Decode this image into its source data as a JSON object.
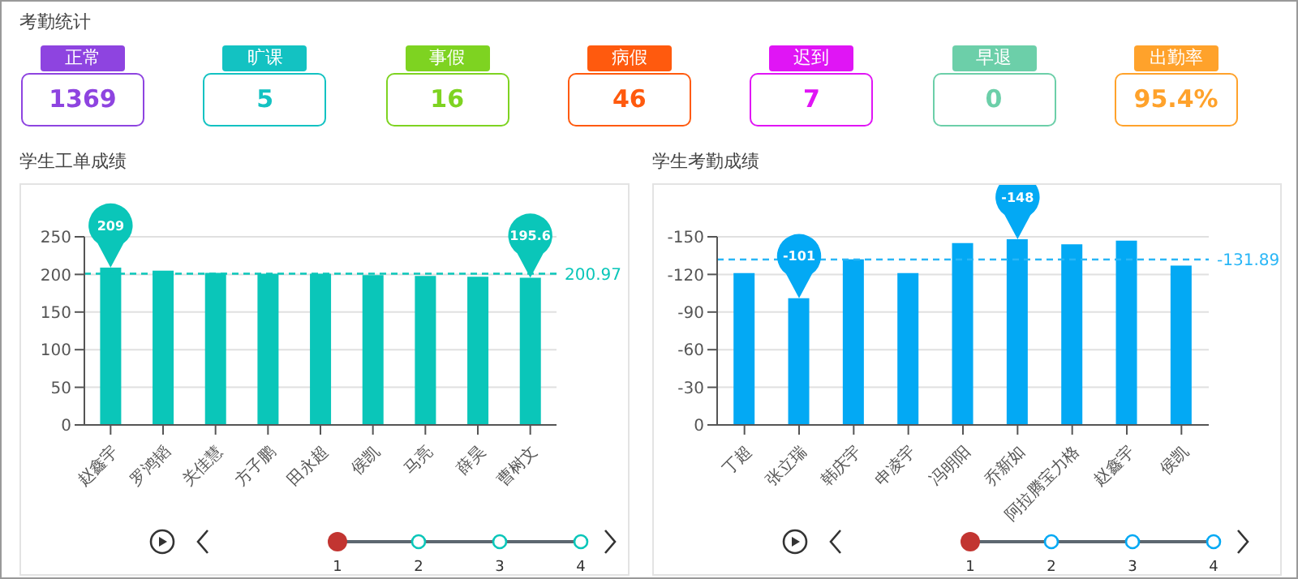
{
  "chart_data": [
    {
      "type": "other",
      "title": "考勤统计",
      "categories": [
        "正常",
        "旷课",
        "事假",
        "病假",
        "迟到",
        "早退",
        "出勤率"
      ],
      "values": [
        1369,
        5,
        16,
        46,
        7,
        0,
        95.4
      ],
      "value_labels": [
        "1369",
        "5",
        "16",
        "46",
        "7",
        "0",
        "95.4%"
      ],
      "colors": [
        "#8e44e0",
        "#13c2c2",
        "#7ed321",
        "#ff5a0e",
        "#e015f5",
        "#6ccfa9",
        "#ffa22b"
      ]
    },
    {
      "type": "bar",
      "title": "学生工单成绩",
      "categories": [
        "赵鑫宇",
        "罗鸿韬",
        "关佳慧",
        "方子鹏",
        "田永超",
        "侯凯",
        "马亮",
        "薛昊",
        "曹树文"
      ],
      "values": [
        209,
        205,
        202,
        201,
        201,
        199,
        198,
        197,
        195.6
      ],
      "color": "#0ac6b9",
      "ylim": [
        0,
        250
      ],
      "yticks": [
        0,
        50,
        100,
        150,
        200,
        250
      ],
      "grid": "y",
      "ref_lines": [
        {
          "axis": "y",
          "value": 200.97,
          "label": "200.97",
          "color": "#0ac6b9",
          "line_style": "dashed"
        }
      ],
      "annotations": [
        {
          "text": "209",
          "x": "赵鑫宇",
          "y": 209
        },
        {
          "text": "195.6",
          "x": "曹树文",
          "y": 195.6
        },
        "1",
        "2",
        "3",
        "4"
      ]
    },
    {
      "type": "bar",
      "title": "学生考勤成绩",
      "categories": [
        "丁超",
        "张立瑞",
        "韩庆宇",
        "申凌宇",
        "冯明阳",
        "乔新如",
        "阿拉腾宝力格",
        "赵鑫宇",
        "侯凯"
      ],
      "values": [
        -121,
        -101,
        -132,
        -121,
        -145,
        -148,
        -144,
        -147,
        -127
      ],
      "color": "#03a9f4",
      "ylim": [
        0,
        -150
      ],
      "yticks": [
        0,
        -30,
        -60,
        -90,
        -120,
        -150
      ],
      "grid": "y",
      "ref_lines": [
        {
          "axis": "y",
          "value": -131.89,
          "label": "-131.89",
          "color": "#29b6f6",
          "line_style": "dashed"
        }
      ],
      "annotations": [
        {
          "text": "-101",
          "x": "张立瑞",
          "y": -101
        },
        {
          "text": "-148",
          "x": "乔新如",
          "y": -148
        },
        "1",
        "2",
        "3",
        "4"
      ]
    }
  ]
}
